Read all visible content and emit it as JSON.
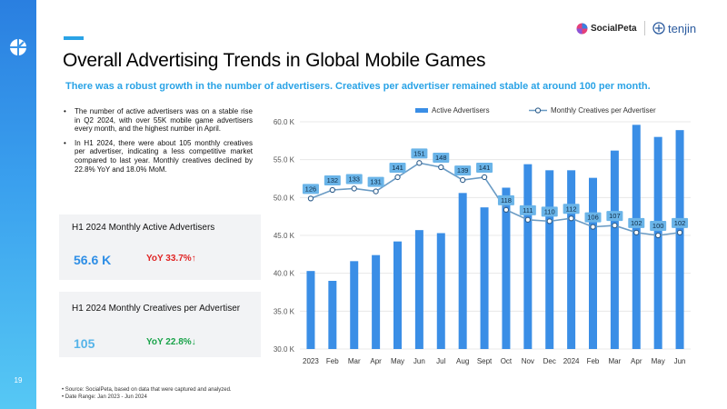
{
  "page_number": "19",
  "brand": {
    "socialpeta": "SocialPeta",
    "tenjin": "tenjin"
  },
  "title": "Overall Advertising Trends in Global Mobile Games",
  "subtitle": "There was a robust growth in the number of advertisers. Creatives per advertiser remained stable at around 100 per month.",
  "bullets": [
    "The number of active advertisers was on a stable rise in Q2 2024, with over 55K mobile game advertisers every month, and the highest number in April.",
    "In H1 2024, there were about 105 monthly creatives per advertiser, indicating a less competitive market compared to last year. Monthly creatives declined by 22.8% YoY and 18.0% MoM."
  ],
  "cards": [
    {
      "title": "H1 2024 Monthly Active Advertisers",
      "value": "56.6 K",
      "yoy": "YoY 33.7%↑"
    },
    {
      "title": "H1 2024 Monthly Creatives per Advertiser",
      "value": "105",
      "yoy": "YoY 22.8%↓"
    }
  ],
  "footnotes": [
    "Source: SocialPeta, based on data that were captured and analyzed.",
    "Date Range: Jan 2023 - Jun 2024"
  ],
  "colors": {
    "bar": "#3a8ee6",
    "line": "#6a9bc4",
    "label_bg": "#6ab4e8",
    "accent": "#2aa3e6"
  },
  "chart_data": {
    "type": "bar",
    "categories": [
      "2023",
      "Feb",
      "Mar",
      "Apr",
      "May",
      "Jun",
      "Jul",
      "Aug",
      "Sept",
      "Oct",
      "Nov",
      "Dec",
      "2024",
      "Feb",
      "Mar",
      "Apr",
      "May",
      "Jun"
    ],
    "y_ticks": [
      "30.0 K",
      "35.0 K",
      "40.0 K",
      "45.0 K",
      "50.0 K",
      "55.0 K",
      "60.0 K"
    ],
    "ylim": [
      30,
      60
    ],
    "series": [
      {
        "name": "Active Advertisers",
        "type": "bar",
        "unit": "K",
        "values": [
          40.3,
          39.0,
          41.6,
          42.4,
          44.2,
          45.7,
          45.3,
          50.6,
          48.7,
          51.3,
          54.4,
          53.6,
          53.6,
          52.6,
          56.2,
          59.6,
          58.0,
          58.9
        ]
      },
      {
        "name": "Monthly Creatives per Advertiser",
        "type": "line",
        "values": [
          126,
          132,
          133,
          131,
          141,
          151,
          148,
          139,
          141,
          118,
          111,
          110,
          112,
          106,
          107,
          102,
          100,
          102
        ],
        "labels": [
          "126",
          "132",
          "133",
          "131",
          "141",
          "151",
          "148",
          "139",
          "141",
          "118",
          "111",
          "110",
          "112",
          "106",
          "107",
          "102",
          "100",
          "102"
        ]
      }
    ],
    "title": "",
    "xlabel": "",
    "ylabel": "",
    "grid": true,
    "legend": "top"
  }
}
